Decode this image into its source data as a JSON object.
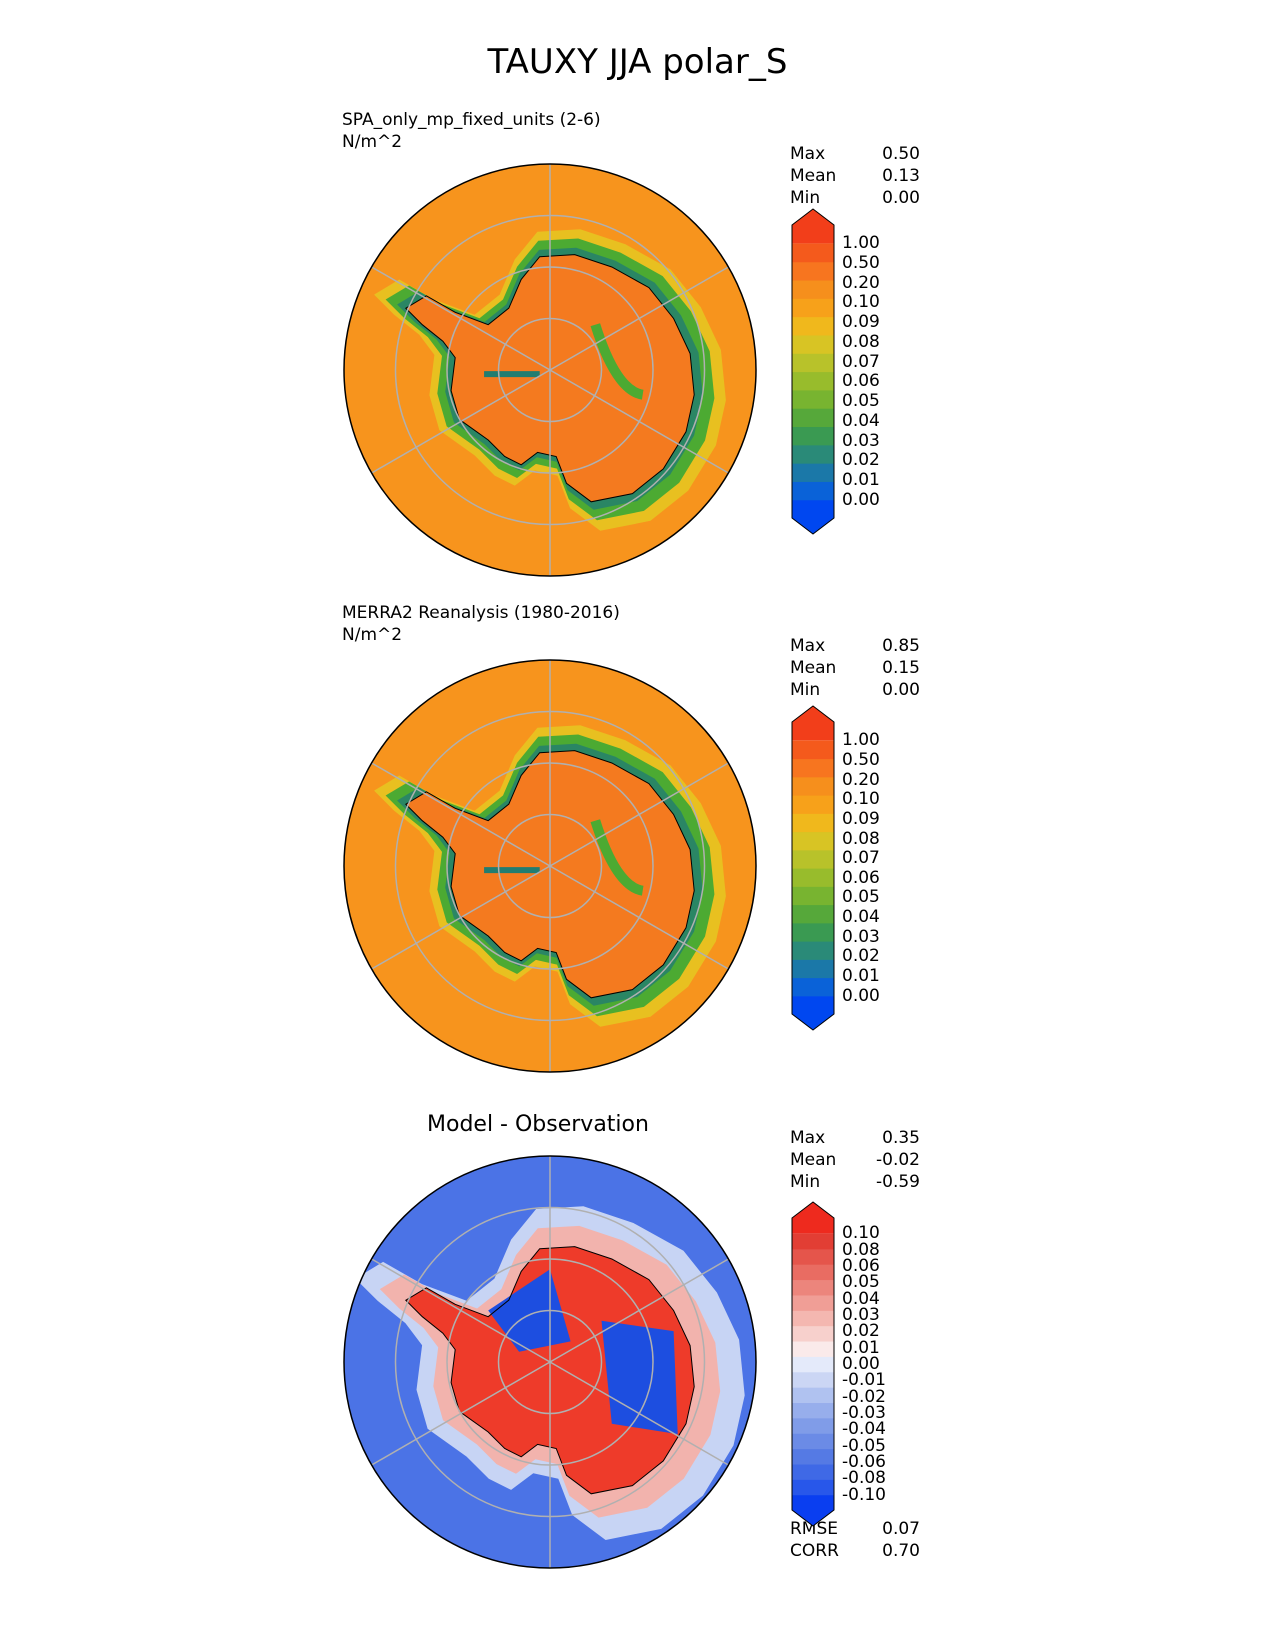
{
  "title": "TAUXY JJA polar_S",
  "colors": {
    "ocean_orange": "#f7941d",
    "land_orange": "#f47a1f",
    "yellow": "#e8c020",
    "green": "#4caa32",
    "teal": "#227d70",
    "blue": "#0047d6",
    "diff_red": "#ee3b2a",
    "diff_blue": "#1d4ee0",
    "grid": "#b0b0b0"
  },
  "chart_data": [
    {
      "type": "heatmap",
      "projection": "south polar stereographic",
      "title": "SPA_only_mp_fixed_units (2-6)",
      "units": "N/m^2",
      "stats": [
        {
          "label": "Max",
          "value": "0.50"
        },
        {
          "label": "Mean",
          "value": "0.13"
        },
        {
          "label": "Min",
          "value": "0.00"
        }
      ],
      "colorbar": {
        "ticks": [
          "1.00",
          "0.50",
          "0.20",
          "0.10",
          "0.09",
          "0.08",
          "0.07",
          "0.06",
          "0.05",
          "0.04",
          "0.03",
          "0.02",
          "0.01",
          "0.00"
        ],
        "colors": [
          "#0047f0",
          "#0a62d8",
          "#1b78a8",
          "#2a8a78",
          "#3a9a52",
          "#56a83a",
          "#78b430",
          "#98bc2c",
          "#b8c22a",
          "#d8c424",
          "#f0b81c",
          "#f7a11a",
          "#f68f1c",
          "#f7751f",
          "#f45a1c",
          "#f23e1a"
        ]
      }
    },
    {
      "type": "heatmap",
      "projection": "south polar stereographic",
      "title": "MERRA2 Reanalysis (1980-2016)",
      "units": "N/m^2",
      "stats": [
        {
          "label": "Max",
          "value": "0.85"
        },
        {
          "label": "Mean",
          "value": "0.15"
        },
        {
          "label": "Min",
          "value": "0.00"
        }
      ],
      "colorbar": {
        "ticks": [
          "1.00",
          "0.50",
          "0.20",
          "0.10",
          "0.09",
          "0.08",
          "0.07",
          "0.06",
          "0.05",
          "0.04",
          "0.03",
          "0.02",
          "0.01",
          "0.00"
        ],
        "colors": [
          "#0047f0",
          "#0a62d8",
          "#1b78a8",
          "#2a8a78",
          "#3a9a52",
          "#56a83a",
          "#78b430",
          "#98bc2c",
          "#b8c22a",
          "#d8c424",
          "#f0b81c",
          "#f7a11a",
          "#f68f1c",
          "#f7751f",
          "#f45a1c",
          "#f23e1a"
        ]
      }
    },
    {
      "type": "heatmap",
      "projection": "south polar stereographic",
      "title": "Model - Observation",
      "stats": [
        {
          "label": "Max",
          "value": "0.35"
        },
        {
          "label": "Mean",
          "value": "-0.02"
        },
        {
          "label": "Min",
          "value": "-0.59"
        }
      ],
      "bottom_stats": [
        {
          "label": "RMSE",
          "value": "0.07"
        },
        {
          "label": "CORR",
          "value": "0.70"
        }
      ],
      "colorbar": {
        "ticks": [
          "0.10",
          "0.08",
          "0.06",
          "0.05",
          "0.04",
          "0.03",
          "0.02",
          "0.01",
          "0.00",
          "-0.01",
          "-0.02",
          "-0.03",
          "-0.04",
          "-0.05",
          "-0.06",
          "-0.08",
          "-0.10"
        ],
        "colors": [
          "#0a3ef0",
          "#2857ea",
          "#3f69e6",
          "#557ae4",
          "#6b8be6",
          "#809ce8",
          "#97aeec",
          "#b0c2f0",
          "#cbd6f4",
          "#e4eafa",
          "#faeaea",
          "#f7d0cc",
          "#f4b7b0",
          "#f09e96",
          "#ec857c",
          "#e96c62",
          "#e5554b",
          "#e23e34",
          "#ee2a1e"
        ]
      }
    }
  ]
}
